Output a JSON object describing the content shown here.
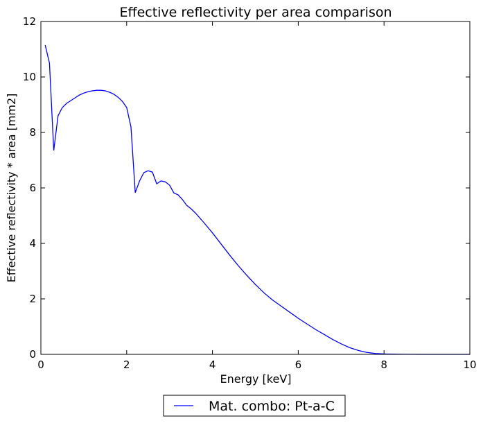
{
  "chart_data": {
    "type": "line",
    "title": "Effective reflectivity per area comparison",
    "xlabel": "Energy [keV]",
    "ylabel": "Effective reflectivity * area [mm2]",
    "xlim": [
      0,
      10
    ],
    "ylim": [
      0,
      12
    ],
    "xticks": [
      0,
      2,
      4,
      6,
      8,
      10
    ],
    "yticks": [
      0,
      2,
      4,
      6,
      8,
      10,
      12
    ],
    "grid": false,
    "legend_position": "bottom-center-outside",
    "series": [
      {
        "name": "Mat. combo: Pt-a-C",
        "color": "#0000ff",
        "x": [
          0.1,
          0.2,
          0.3,
          0.4,
          0.5,
          0.6,
          0.7,
          0.8,
          0.9,
          1.0,
          1.1,
          1.2,
          1.3,
          1.4,
          1.5,
          1.6,
          1.7,
          1.8,
          1.9,
          2.0,
          2.1,
          2.2,
          2.3,
          2.4,
          2.5,
          2.6,
          2.7,
          2.8,
          2.9,
          3.0,
          3.1,
          3.2,
          3.3,
          3.4,
          3.5,
          3.6,
          3.8,
          4.0,
          4.2,
          4.4,
          4.6,
          4.8,
          5.0,
          5.2,
          5.4,
          5.6,
          5.8,
          6.0,
          6.2,
          6.4,
          6.6,
          6.8,
          7.0,
          7.2,
          7.4,
          7.6,
          7.8,
          8.0,
          8.2,
          8.5,
          9.0,
          10.0
        ],
        "y": [
          11.15,
          10.5,
          7.35,
          8.6,
          8.9,
          9.05,
          9.15,
          9.25,
          9.35,
          9.42,
          9.47,
          9.5,
          9.52,
          9.52,
          9.5,
          9.45,
          9.38,
          9.27,
          9.12,
          8.9,
          8.2,
          5.83,
          6.25,
          6.55,
          6.62,
          6.57,
          6.15,
          6.25,
          6.22,
          6.1,
          5.82,
          5.75,
          5.58,
          5.37,
          5.25,
          5.1,
          4.75,
          4.38,
          3.98,
          3.58,
          3.2,
          2.85,
          2.52,
          2.22,
          1.96,
          1.74,
          1.52,
          1.3,
          1.1,
          0.9,
          0.72,
          0.54,
          0.38,
          0.24,
          0.14,
          0.07,
          0.03,
          0.015,
          0.008,
          0.003,
          0.0,
          0.0
        ]
      }
    ]
  }
}
